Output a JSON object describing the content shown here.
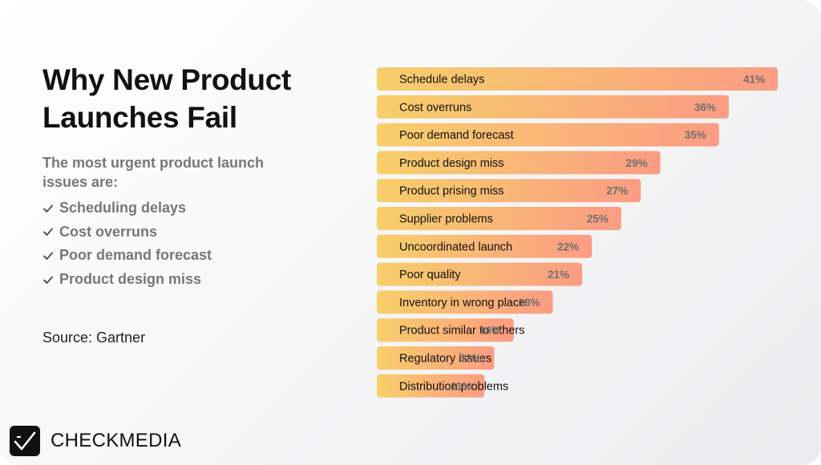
{
  "title": "Why New Product Launches Fail",
  "subtitle": "The most urgent product launch issues are:",
  "key_issues": [
    "Scheduling delays",
    "Cost overruns",
    "Poor demand forecast",
    "Product design miss"
  ],
  "source": "Source: Gartner",
  "brand": {
    "name": "CHECKMEDIA"
  },
  "colors": {
    "bar_start": "#f7cf6a",
    "bar_end": "#fb9c83",
    "value_text": "#6f6f6f",
    "muted_text": "#777777"
  },
  "icons": {
    "check": "check-icon",
    "logo": "checkmedia-logo-icon"
  },
  "chart_data": {
    "type": "bar",
    "orientation": "horizontal",
    "categories": [
      "Schedule delays",
      "Cost overruns",
      "Poor demand forecast",
      "Product design miss",
      "Product prising miss",
      "Supplier problems",
      "Uncoordinated launch",
      "Poor quality",
      "Inventory in wrong place",
      "Product similar to others",
      "Regulatory issues",
      "Distribution problems"
    ],
    "values": [
      41,
      36,
      35,
      29,
      27,
      25,
      22,
      21,
      18,
      14,
      12,
      11
    ],
    "value_labels": [
      "41%",
      "36%",
      "35%",
      "29%",
      "27%",
      "25%",
      "22%",
      "21%",
      "18%",
      "14%",
      "12%",
      "11%"
    ],
    "unit": "%",
    "xlim": [
      0,
      41
    ],
    "grid": false,
    "legend": "none"
  }
}
